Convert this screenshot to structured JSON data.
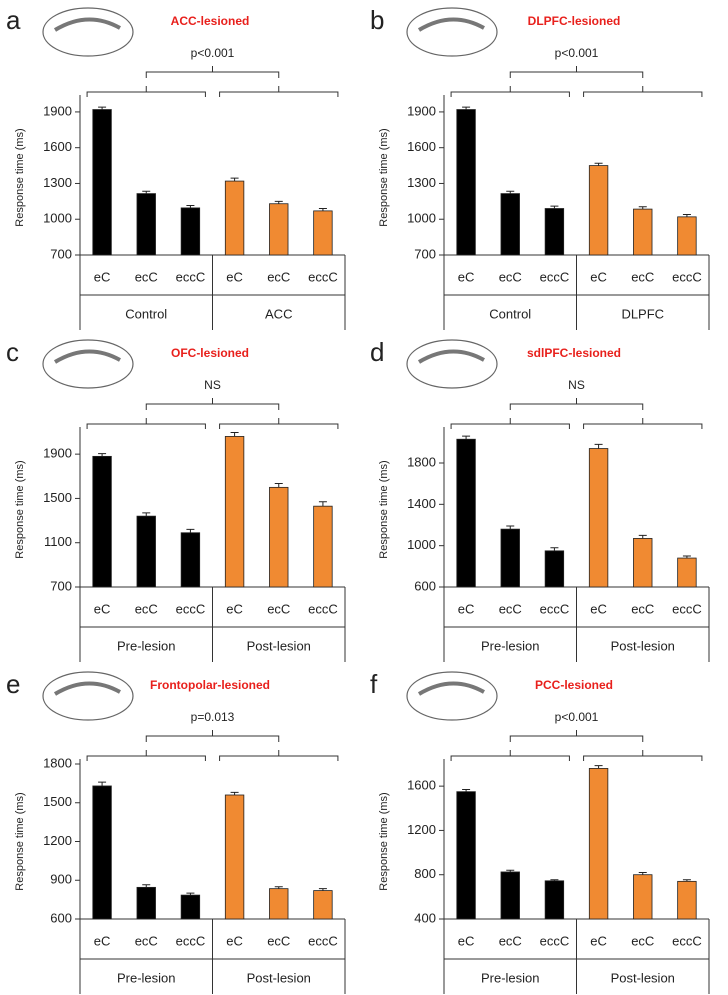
{
  "chart_data": [
    {
      "type": "bar",
      "panel": "a",
      "title": "ACC-lesioned",
      "annotation": "p<0.001",
      "ylabel": "Response time (ms)",
      "groups": [
        "Control",
        "ACC"
      ],
      "group_colors": [
        "#000000",
        "#f08a32"
      ],
      "categories": [
        "eC",
        "ecC",
        "eccC",
        "eC",
        "ecC",
        "eccC"
      ],
      "values": [
        1920,
        1215,
        1095,
        1320,
        1130,
        1070
      ],
      "errors": [
        20,
        20,
        20,
        25,
        20,
        20
      ],
      "ylim": [
        700,
        2000
      ],
      "yticks": [
        700,
        1000,
        1300,
        1600,
        1900
      ]
    },
    {
      "type": "bar",
      "panel": "b",
      "title": "DLPFC-lesioned",
      "annotation": "p<0.001",
      "ylabel": "Response time (ms)",
      "groups": [
        "Control",
        "DLPFC"
      ],
      "group_colors": [
        "#000000",
        "#f08a32"
      ],
      "categories": [
        "eC",
        "ecC",
        "eccC",
        "eC",
        "ecC",
        "eccC"
      ],
      "values": [
        1920,
        1215,
        1090,
        1450,
        1085,
        1020
      ],
      "errors": [
        20,
        20,
        20,
        20,
        20,
        20
      ],
      "ylim": [
        700,
        2000
      ],
      "yticks": [
        700,
        1000,
        1300,
        1600,
        1900
      ]
    },
    {
      "type": "bar",
      "panel": "c",
      "title": "OFC-lesioned",
      "annotation": "NS",
      "ylabel": "Response time (ms)",
      "groups": [
        "Pre-lesion",
        "Post-lesion"
      ],
      "group_colors": [
        "#000000",
        "#f08a32"
      ],
      "categories": [
        "eC",
        "ecC",
        "eccC",
        "eC",
        "ecC",
        "eccC"
      ],
      "values": [
        1880,
        1340,
        1190,
        2060,
        1600,
        1430
      ],
      "errors": [
        25,
        30,
        30,
        35,
        35,
        40
      ],
      "ylim": [
        700,
        2100
      ],
      "yticks": [
        700,
        1100,
        1500,
        1900
      ]
    },
    {
      "type": "bar",
      "panel": "d",
      "title": "sdlPFC-lesioned",
      "annotation": "NS",
      "ylabel": "Response time (ms)",
      "groups": [
        "Pre-lesion",
        "Post-lesion"
      ],
      "group_colors": [
        "#000000",
        "#f08a32"
      ],
      "categories": [
        "eC",
        "ecC",
        "eccC",
        "eC",
        "ecC",
        "eccC"
      ],
      "values": [
        2030,
        1160,
        950,
        1940,
        1070,
        880
      ],
      "errors": [
        30,
        30,
        30,
        40,
        30,
        20
      ],
      "ylim": [
        600,
        2100
      ],
      "yticks": [
        600,
        1000,
        1400,
        1800
      ]
    },
    {
      "type": "bar",
      "panel": "e",
      "title": "Frontopolar-lesioned",
      "annotation": "p=0.013",
      "ylabel": "Response time (ms)",
      "groups": [
        "Pre-lesion",
        "Post-lesion"
      ],
      "group_colors": [
        "#000000",
        "#f08a32"
      ],
      "categories": [
        "eC",
        "ecC",
        "eccC",
        "eC",
        "ecC",
        "eccC"
      ],
      "values": [
        1630,
        845,
        785,
        1560,
        835,
        820
      ],
      "errors": [
        30,
        20,
        15,
        20,
        15,
        15
      ],
      "ylim": [
        600,
        1800
      ],
      "yticks": [
        600,
        900,
        1200,
        1500,
        1800
      ]
    },
    {
      "type": "bar",
      "panel": "f",
      "title": "PCC-lesioned",
      "annotation": "p<0.001",
      "ylabel": "Response time (ms)",
      "groups": [
        "Pre-lesion",
        "Post-lesion"
      ],
      "group_colors": [
        "#000000",
        "#f08a32"
      ],
      "categories": [
        "eC",
        "ecC",
        "eccC",
        "eC",
        "ecC",
        "eccC"
      ],
      "values": [
        1550,
        825,
        745,
        1760,
        800,
        740
      ],
      "errors": [
        20,
        15,
        10,
        25,
        20,
        15
      ],
      "ylim": [
        400,
        1800
      ],
      "yticks": [
        400,
        800,
        1200,
        1600
      ]
    }
  ]
}
